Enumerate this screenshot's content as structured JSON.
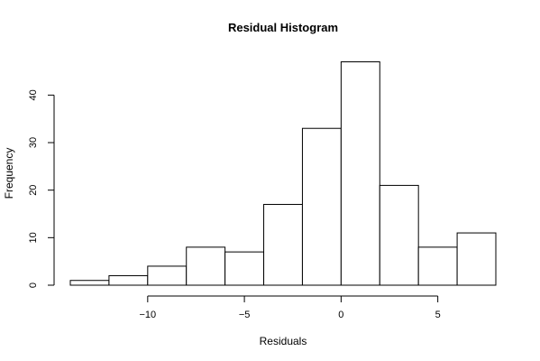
{
  "chart_data": {
    "type": "bar",
    "title": "Residual Histogram",
    "xlabel": "Residuals",
    "ylabel": "Frequency",
    "bin_edges": [
      -14,
      -12,
      -10,
      -8,
      -6,
      -4,
      -2,
      0,
      2,
      4,
      6,
      8
    ],
    "values": [
      1,
      2,
      4,
      8,
      7,
      17,
      33,
      47,
      21,
      8,
      11
    ],
    "x_ticks": [
      -10,
      -5,
      0,
      5
    ],
    "x_tick_labels": [
      "−10",
      "−5",
      "0",
      "5"
    ],
    "y_ticks": [
      0,
      10,
      20,
      30,
      40
    ],
    "y_tick_labels": [
      "0",
      "10",
      "20",
      "30",
      "40"
    ],
    "xlim": [
      -14,
      8
    ],
    "ylim": [
      0,
      47
    ],
    "grid": false
  }
}
